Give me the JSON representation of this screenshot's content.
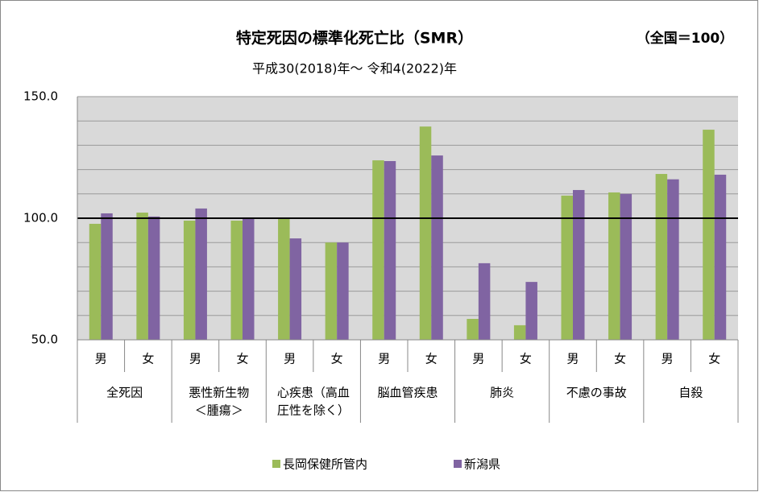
{
  "chart_data": {
    "type": "bar",
    "title": "特定死因の標準化死亡比（SMR）",
    "note": "（全国＝100）",
    "subtitle": "平成30(2018)年～ 令和4(2022)年",
    "categories": [
      "男",
      "女",
      "男",
      "女",
      "男",
      "女",
      "男",
      "女",
      "男",
      "女",
      "男",
      "女",
      "男",
      "女"
    ],
    "groups": [
      [
        "全死因"
      ],
      [
        "悪性新生物",
        "＜腫瘍＞"
      ],
      [
        "心疾患（高血",
        "圧性を除く）"
      ],
      [
        "脳血管疾患"
      ],
      [
        "肺炎"
      ],
      [
        "不慮の事故"
      ],
      [
        "自殺"
      ]
    ],
    "series": [
      {
        "name": "長岡保健所管内",
        "color": "#9bbb59",
        "values": [
          97.7,
          102.3,
          99,
          99,
          99.7,
          90,
          123.8,
          137.7,
          58.6,
          56,
          109.3,
          110.6,
          118.2,
          136.4
        ]
      },
      {
        "name": "新潟県",
        "color": "#8064a2",
        "values": [
          102,
          100.7,
          104,
          99.7,
          91.7,
          90,
          123.5,
          125.8,
          81.5,
          73.8,
          111.6,
          110,
          116,
          117.9
        ]
      }
    ],
    "ylim": [
      50,
      150
    ],
    "yticks": [
      {
        "value": 50,
        "label": "50.0"
      },
      {
        "value": 100,
        "label": "100.0"
      },
      {
        "value": 150,
        "label": "150.0"
      }
    ],
    "minor_gridlines": [
      60,
      70,
      80,
      90,
      110,
      120,
      130,
      140
    ],
    "reference_line": 100,
    "grid": true,
    "legend": "bottom"
  }
}
